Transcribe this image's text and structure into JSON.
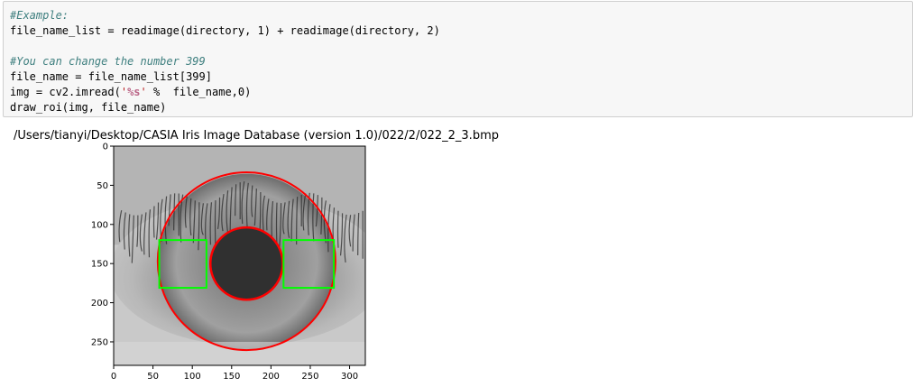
{
  "code_cell": {
    "lines": [
      [
        {
          "t": "#Example:",
          "c": "comment"
        }
      ],
      [
        {
          "t": "file_name_list = readimage(directory, 1) + readimage(directory, 2)",
          "c": ""
        }
      ],
      [
        {
          "t": "",
          "c": ""
        }
      ],
      [
        {
          "t": "#You can change the number 399",
          "c": "comment"
        }
      ],
      [
        {
          "t": "file_name = file_name_list[399]",
          "c": ""
        }
      ],
      [
        {
          "t": "img = cv2.imread(",
          "c": ""
        },
        {
          "t": "'",
          "c": "str"
        },
        {
          "t": "%s",
          "c": "fmt"
        },
        {
          "t": "'",
          "c": "str"
        },
        {
          "t": " %  file_name,0)",
          "c": ""
        }
      ],
      [
        {
          "t": "draw_roi(img, file_name)",
          "c": ""
        }
      ]
    ]
  },
  "output": {
    "printed_path": "/Users/tianyi/Desktop/CASIA Iris Image Database (version 1.0)/022/2/022_2_3.bmp"
  },
  "plot": {
    "x_ticks": [
      "0",
      "50",
      "100",
      "150",
      "200",
      "250",
      "300"
    ],
    "y_ticks": [
      "0",
      "50",
      "100",
      "150",
      "200",
      "250"
    ],
    "x_tick_values": [
      0,
      50,
      100,
      150,
      200,
      250,
      300
    ],
    "y_tick_values": [
      0,
      50,
      100,
      150,
      200,
      250
    ],
    "image_size": [
      320,
      280
    ],
    "iris_circle": {
      "cx": 169,
      "cy": 147,
      "r": 113,
      "color": "#ff0000"
    },
    "pupil_circle": {
      "cx": 169,
      "cy": 150,
      "r": 46,
      "color": "#ff0000",
      "fill": "#303030"
    },
    "roi_boxes": [
      {
        "x0": 58,
        "y0": 120,
        "x1": 118,
        "y1": 181,
        "color": "#00ff00"
      },
      {
        "x0": 216,
        "y0": 120,
        "x1": 280,
        "y1": 181,
        "color": "#00ff00"
      }
    ]
  }
}
